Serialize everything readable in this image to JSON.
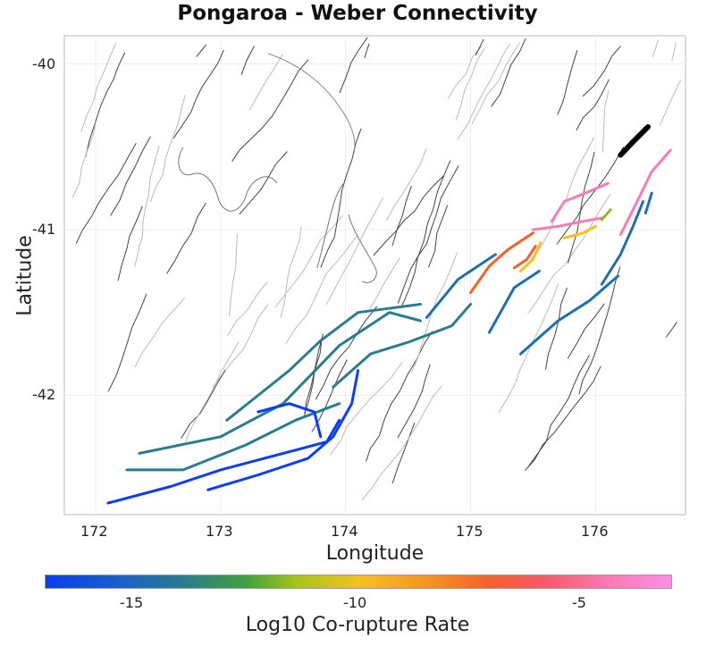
{
  "title": "Pongaroa - Weber Connectivity",
  "xlabel": "Longitude",
  "ylabel": "Latitude",
  "colorbar_label": "Log10 Co-rupture Rate",
  "colorbar_ticks": [
    "-15",
    "-10",
    "-5"
  ],
  "chart_data": {
    "type": "map",
    "title": "Pongaroa - Weber Connectivity",
    "xlabel": "Longitude",
    "ylabel": "Latitude",
    "xlim": [
      171.75,
      176.72
    ],
    "ylim": [
      -42.72,
      -39.83
    ],
    "x_ticks": [
      172,
      173,
      174,
      175,
      176
    ],
    "y_ticks": [
      -40,
      -41,
      -42
    ],
    "colorbar": {
      "label": "Log10 Co-rupture Rate",
      "ticks": [
        -15,
        -10,
        -5
      ],
      "range": [
        -17,
        -3
      ]
    },
    "ruptures": [
      {
        "name": "source",
        "color": "#000000",
        "lonlat": [
          [
            176.2,
            -40.55
          ],
          [
            176.3,
            -40.47
          ],
          [
            176.42,
            -40.38
          ]
        ]
      },
      {
        "name": "pink-north",
        "color": "#ff7ab4",
        "lonlat": [
          [
            175.65,
            -40.95
          ],
          [
            175.75,
            -40.83
          ],
          [
            175.95,
            -40.77
          ],
          [
            176.1,
            -40.72
          ]
        ]
      },
      {
        "name": "pink-east",
        "color": "#ff7ab4",
        "lonlat": [
          [
            176.2,
            -41.03
          ],
          [
            176.3,
            -40.88
          ],
          [
            176.45,
            -40.65
          ],
          [
            176.6,
            -40.52
          ]
        ]
      },
      {
        "name": "pink-mid",
        "color": "#ff7ab4",
        "lonlat": [
          [
            175.5,
            -41.0
          ],
          [
            175.7,
            -40.98
          ],
          [
            175.9,
            -40.95
          ],
          [
            176.05,
            -40.93
          ]
        ]
      },
      {
        "name": "orange-red",
        "color": "#f2622a",
        "lonlat": [
          [
            175.0,
            -41.38
          ],
          [
            175.15,
            -41.22
          ],
          [
            175.3,
            -41.12
          ],
          [
            175.5,
            -41.02
          ]
        ]
      },
      {
        "name": "orange-short",
        "color": "#f4622a",
        "lonlat": [
          [
            175.35,
            -41.23
          ],
          [
            175.45,
            -41.18
          ],
          [
            175.52,
            -41.1
          ]
        ]
      },
      {
        "name": "yellow-a",
        "color": "#f4c21f",
        "lonlat": [
          [
            175.4,
            -41.25
          ],
          [
            175.5,
            -41.18
          ],
          [
            175.56,
            -41.08
          ]
        ]
      },
      {
        "name": "yellow-b",
        "color": "#f4c21f",
        "lonlat": [
          [
            175.75,
            -41.05
          ],
          [
            175.9,
            -41.02
          ],
          [
            176.0,
            -40.98
          ]
        ]
      },
      {
        "name": "green-short",
        "color": "#8cb82a",
        "lonlat": [
          [
            176.05,
            -40.94
          ],
          [
            176.12,
            -40.88
          ]
        ]
      },
      {
        "name": "teal-east-1",
        "color": "#1f6fb0",
        "lonlat": [
          [
            176.05,
            -41.33
          ],
          [
            176.2,
            -41.15
          ],
          [
            176.3,
            -40.98
          ],
          [
            176.38,
            -40.83
          ]
        ]
      },
      {
        "name": "teal-east-2",
        "color": "#1f6fb0",
        "lonlat": [
          [
            176.4,
            -40.9
          ],
          [
            176.45,
            -40.78
          ]
        ]
      },
      {
        "name": "blue-mid-1",
        "color": "#1f6fb0",
        "lonlat": [
          [
            174.65,
            -41.53
          ],
          [
            174.9,
            -41.3
          ],
          [
            175.2,
            -41.15
          ]
        ]
      },
      {
        "name": "blue-mid-2",
        "color": "#1f6fb0",
        "lonlat": [
          [
            175.15,
            -41.62
          ],
          [
            175.35,
            -41.35
          ],
          [
            175.55,
            -41.25
          ]
        ]
      },
      {
        "name": "blue-mid-3",
        "color": "#1f6fb0",
        "lonlat": [
          [
            175.4,
            -41.75
          ],
          [
            175.7,
            -41.55
          ],
          [
            175.95,
            -41.43
          ],
          [
            176.18,
            -41.28
          ]
        ]
      },
      {
        "name": "teal-south-main",
        "color": "#2a7c8e",
        "lonlat": [
          [
            172.35,
            -42.35
          ],
          [
            173.0,
            -42.25
          ],
          [
            173.5,
            -42.05
          ],
          [
            173.95,
            -41.7
          ],
          [
            174.35,
            -41.5
          ],
          [
            174.6,
            -41.55
          ]
        ]
      },
      {
        "name": "teal-south-2",
        "color": "#2a7c8e",
        "lonlat": [
          [
            173.05,
            -42.15
          ],
          [
            173.3,
            -42.0
          ],
          [
            173.55,
            -41.85
          ],
          [
            173.8,
            -41.67
          ],
          [
            174.1,
            -41.5
          ],
          [
            174.6,
            -41.45
          ]
        ]
      },
      {
        "name": "teal-south-3",
        "color": "#2a7c8e",
        "lonlat": [
          [
            173.9,
            -41.95
          ],
          [
            174.2,
            -41.75
          ],
          [
            174.5,
            -41.68
          ],
          [
            174.85,
            -41.58
          ],
          [
            175.0,
            -41.45
          ]
        ]
      },
      {
        "name": "teal-south-4",
        "color": "#2a7c8e",
        "lonlat": [
          [
            172.25,
            -42.45
          ],
          [
            172.7,
            -42.45
          ],
          [
            173.2,
            -42.3
          ],
          [
            173.6,
            -42.15
          ],
          [
            173.95,
            -42.05
          ]
        ]
      },
      {
        "name": "blue-south-1",
        "color": "#0a3df5",
        "lonlat": [
          [
            172.1,
            -42.65
          ],
          [
            172.6,
            -42.55
          ],
          [
            173.0,
            -42.45
          ],
          [
            173.5,
            -42.35
          ],
          [
            173.85,
            -42.28
          ],
          [
            173.95,
            -42.15
          ]
        ]
      },
      {
        "name": "blue-south-2",
        "color": "#0a3df5",
        "lonlat": [
          [
            172.9,
            -42.57
          ],
          [
            173.3,
            -42.48
          ],
          [
            173.7,
            -42.38
          ],
          [
            173.9,
            -42.25
          ],
          [
            174.05,
            -42.05
          ],
          [
            174.1,
            -41.85
          ]
        ]
      },
      {
        "name": "blue-south-3",
        "color": "#0a3df5",
        "lonlat": [
          [
            173.3,
            -42.1
          ],
          [
            173.55,
            -42.05
          ],
          [
            173.75,
            -42.1
          ],
          [
            173.8,
            -42.25
          ]
        ]
      }
    ]
  }
}
